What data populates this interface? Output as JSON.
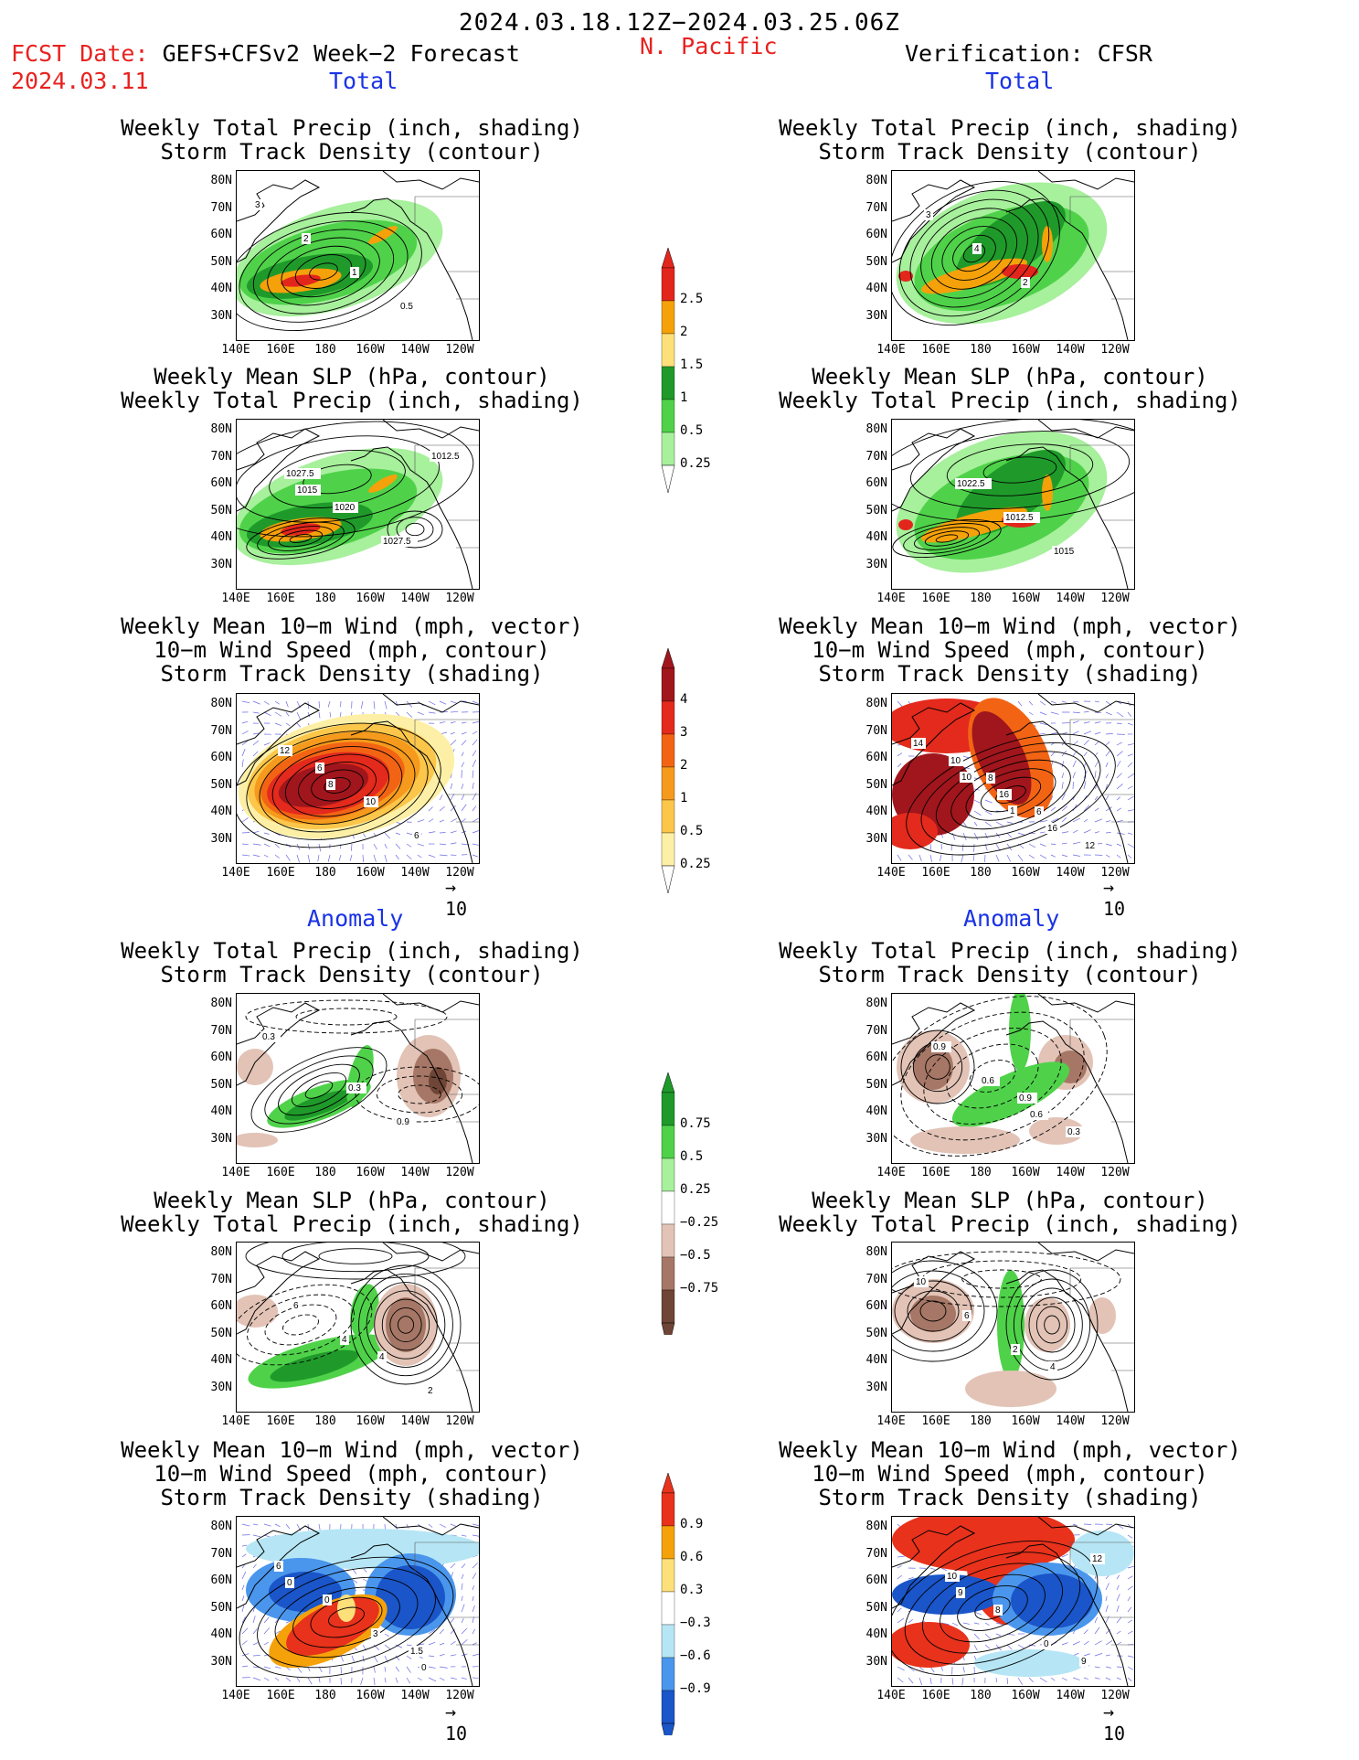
{
  "header": {
    "period": "2024.03.18.12Z−2024.03.25.06Z",
    "fcst_label": "FCST Date:",
    "fcst_model": "GEFS+CFSv2 Week−2 Forecast",
    "fcst_date": "2024.03.11",
    "region": "N. Pacific",
    "verification": "Verification: CFSR",
    "total_left": "Total",
    "total_right": "Total",
    "anom_left": "Anomaly",
    "anom_right": "Anomaly"
  },
  "captions": {
    "precip_track": "Weekly Total Precip (inch, shading)\nStorm Track Density (contour)",
    "slp_precip": "Weekly Mean SLP (hPa, contour)\nWeekly Total Precip (inch, shading)",
    "wind_track": "Weekly Mean 10−m Wind (mph, vector)\n10−m Wind Speed (mph, contour)\nStorm Track Density (shading)"
  },
  "axes": {
    "lat_labels": [
      "80N",
      "70N",
      "60N",
      "50N",
      "40N",
      "30N"
    ],
    "lon_labels": [
      "140E",
      "160E",
      "180",
      "160W",
      "140W",
      "120W"
    ]
  },
  "vector_ref": "10",
  "colorbars": {
    "precip_total": {
      "labels": [
        "2.5",
        "2",
        "1.5",
        "1",
        "0.5",
        "0.25"
      ],
      "colors": [
        "#e3261c",
        "#f5a10a",
        "#fde07a",
        "#1f9a2a",
        "#4fd24a",
        "#a7f09c"
      ]
    },
    "track_total": {
      "labels": [
        "4",
        "3",
        "2",
        "1",
        "0.5",
        "0.25"
      ],
      "colors": [
        "#a0161c",
        "#e32a1c",
        "#f26414",
        "#f59a1c",
        "#fbc64a",
        "#fdf0a6"
      ]
    },
    "precip_anom": {
      "labels": [
        "0.75",
        "0.5",
        "0.25",
        "−0.25",
        "−0.5",
        "−0.75"
      ],
      "colors": [
        "#1f9a2a",
        "#4fd24a",
        "#a7f09c",
        "#ffffff",
        "#e2c3b6",
        "#a67766",
        "#6e4536"
      ]
    },
    "track_anom": {
      "labels": [
        "0.9",
        "0.6",
        "0.3",
        "−0.3",
        "−0.6",
        "−0.9"
      ],
      "colors": [
        "#e8321c",
        "#f5a10a",
        "#fde07a",
        "#ffffff",
        "#b6e6f5",
        "#4a96ec",
        "#1a55c9"
      ]
    }
  },
  "contour_labels": {
    "fl1": [
      "3",
      "2",
      "1",
      "0.5"
    ],
    "fr1": [
      "3",
      "4",
      "2"
    ],
    "fl2": [
      "1027.5",
      "1020",
      "1027.5",
      "1012.5",
      "1015"
    ],
    "fr2": [
      "1022.5",
      "1012.5",
      "1015"
    ],
    "fl3": [
      "6",
      "10",
      "6",
      "12",
      "8"
    ],
    "fr3": [
      "8",
      "6",
      "12",
      "10",
      "16",
      "16",
      "14",
      "10",
      "1"
    ],
    "al1": [
      "0.3",
      "0.9",
      "0.3"
    ],
    "ar1": [
      "0.9",
      "0.3",
      "0.9",
      "0.6",
      "0.6"
    ],
    "al2": [
      "4",
      "2",
      "6",
      "4"
    ],
    "ar2": [
      "4",
      "10",
      "6",
      "2"
    ],
    "al3": [
      "1.5",
      "6",
      "0",
      "3",
      "0",
      "0"
    ],
    "ar3": [
      "9",
      "10",
      "8",
      "0",
      "12",
      "9"
    ]
  }
}
